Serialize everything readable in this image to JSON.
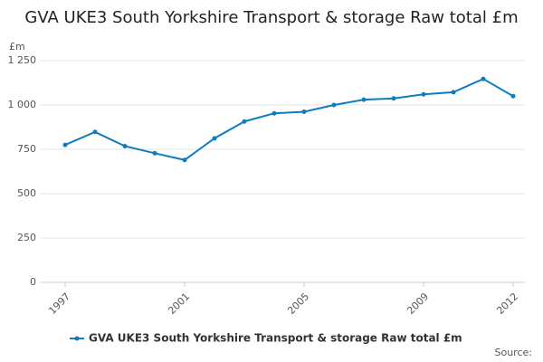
{
  "chart_data": {
    "type": "line",
    "title": "GVA UKE3 South Yorkshire Transport & storage Raw total £m",
    "y_label": "£m",
    "source": "Source:",
    "x": [
      1997,
      1998,
      1999,
      2000,
      2001,
      2002,
      2003,
      2004,
      2005,
      2006,
      2007,
      2008,
      2009,
      2010,
      2011,
      2012
    ],
    "series": [
      {
        "name": "GVA UKE3 South Yorkshire Transport & storage Raw total £m",
        "color": "#0f7dbd",
        "values": [
          775,
          848,
          768,
          728,
          690,
          812,
          907,
          953,
          962,
          1000,
          1030,
          1037,
          1060,
          1072,
          1147,
          1050
        ]
      }
    ],
    "xlim": [
      1997,
      2012
    ],
    "xticks": [
      1997,
      2001,
      2005,
      2009,
      2012
    ],
    "ylim": [
      0,
      1250
    ],
    "yticks": [
      0,
      250,
      500,
      750,
      {
        "value": 1000,
        "label": "1 000"
      },
      {
        "value": 1250,
        "label": "1 250"
      }
    ],
    "grid": true,
    "legend": "bottom"
  }
}
